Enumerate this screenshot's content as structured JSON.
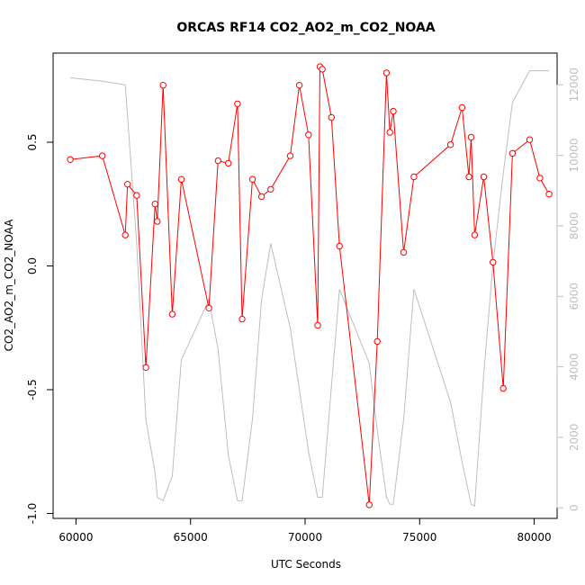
{
  "chart_data": {
    "type": "line",
    "title": "ORCAS RF14 CO2_AO2_m_CO2_NOAA",
    "xlabel": "UTC Seconds",
    "ylabel": "CO2_AO2_m_CO2_NOAA",
    "xlim": [
      59000,
      81000
    ],
    "ylim": [
      -1.02,
      0.86
    ],
    "y2lim": [
      -300,
      12900
    ],
    "x_ticks": [
      60000,
      65000,
      70000,
      75000,
      80000
    ],
    "x_tick_labels": [
      "60000",
      "65000",
      "70000",
      "75000",
      "80000"
    ],
    "y_ticks": [
      -1.0,
      -0.5,
      0.0,
      0.5
    ],
    "y_tick_labels": [
      "-1.0",
      "-0.5",
      "0.0",
      "0.5"
    ],
    "y2_ticks": [
      0,
      2000,
      4000,
      6000,
      8000,
      10000,
      12000
    ],
    "y2_tick_labels": [
      "0",
      "2000",
      "4000",
      "6000",
      "8000",
      "10000",
      "12000"
    ],
    "grid": false,
    "series": [
      {
        "axis": "left",
        "color": "#ff0000",
        "style": "line-with-open-circles",
        "x": [
          59750,
          61150,
          62150,
          62250,
          62650,
          63050,
          63450,
          63550,
          63800,
          64200,
          64600,
          65800,
          66200,
          66650,
          67050,
          67250,
          67700,
          68100,
          68500,
          69350,
          69750,
          70150,
          70550,
          70650,
          70750,
          71150,
          71500,
          72800,
          73150,
          73550,
          73700,
          73850,
          74300,
          74750,
          76350,
          76850,
          77150,
          77250,
          77400,
          77800,
          78200,
          78650,
          79050,
          79800,
          80250,
          80650
        ],
        "y": [
          0.43,
          0.445,
          0.125,
          0.33,
          0.285,
          -0.41,
          0.25,
          0.18,
          0.73,
          -0.195,
          0.35,
          -0.17,
          0.425,
          0.415,
          0.655,
          -0.215,
          0.35,
          0.28,
          0.31,
          0.445,
          0.73,
          0.53,
          -0.24,
          0.805,
          0.795,
          0.6,
          0.08,
          -0.965,
          -0.305,
          0.78,
          0.54,
          0.625,
          0.055,
          0.36,
          0.49,
          0.64,
          0.36,
          0.52,
          0.125,
          0.36,
          0.015,
          -0.495,
          0.455,
          0.51,
          0.355,
          0.29
        ]
      },
      {
        "axis": "right",
        "color": "#bebebe",
        "style": "line",
        "x": [
          59750,
          61150,
          62150,
          62650,
          63050,
          63450,
          63550,
          63800,
          64200,
          64600,
          65800,
          66200,
          66650,
          67050,
          67250,
          67700,
          68100,
          68500,
          69350,
          70150,
          70550,
          70750,
          71500,
          72800,
          73150,
          73550,
          73700,
          73850,
          74300,
          74750,
          76350,
          76850,
          77250,
          77400,
          77800,
          78200,
          78650,
          79050,
          79800,
          80650
        ],
        "y": [
          12200,
          12100,
          12000,
          7500,
          2500,
          1000,
          300,
          200,
          900,
          4200,
          5900,
          4500,
          1500,
          200,
          200,
          2500,
          5900,
          7500,
          5100,
          1600,
          300,
          300,
          6200,
          4100,
          2200,
          300,
          100,
          100,
          2500,
          6200,
          3000,
          1300,
          100,
          50,
          3800,
          6900,
          9500,
          11500,
          12400,
          12400
        ]
      }
    ]
  }
}
